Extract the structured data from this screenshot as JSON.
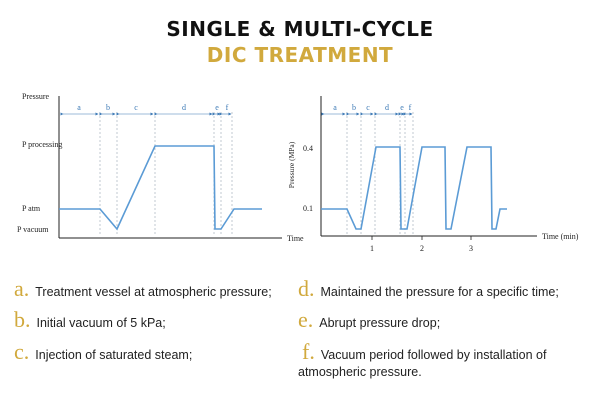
{
  "title_line1": "SINGLE & MULTI-CYCLE",
  "title_line2": "DIC TREATMENT",
  "colors": {
    "accent": "#d1a93d",
    "line": "#5b9bd5",
    "label": "#3a78b5"
  },
  "left_diagram": {
    "y_axis_label": "Pressure",
    "x_axis_label": "Time",
    "levels": [
      "P processing",
      "P atm",
      "P vacuum"
    ],
    "phases": [
      "a",
      "b",
      "c",
      "d",
      "e",
      "f"
    ]
  },
  "right_diagram": {
    "y_axis_label": "Pressure (MPa)",
    "x_axis_label": "Time (min)",
    "y_ticks": [
      "0.4",
      "0.1"
    ],
    "x_ticks": [
      "1",
      "2",
      "3"
    ],
    "phases": [
      "a",
      "b",
      "c",
      "d",
      "e",
      "f"
    ]
  },
  "legend": [
    {
      "letter": "a.",
      "text": "Treatment vessel at atmospheric pressure;"
    },
    {
      "letter": "b.",
      "text": "Initial vacuum of 5 kPa;"
    },
    {
      "letter": "c.",
      "text": "Injection of saturated steam;"
    },
    {
      "letter": "d.",
      "text": "Maintained the pressure for a specific time;"
    },
    {
      "letter": "e.",
      "text": "Abrupt pressure drop;"
    },
    {
      "letter": "f.",
      "text": "Vacuum period followed by installation of atmospheric pressure."
    }
  ]
}
